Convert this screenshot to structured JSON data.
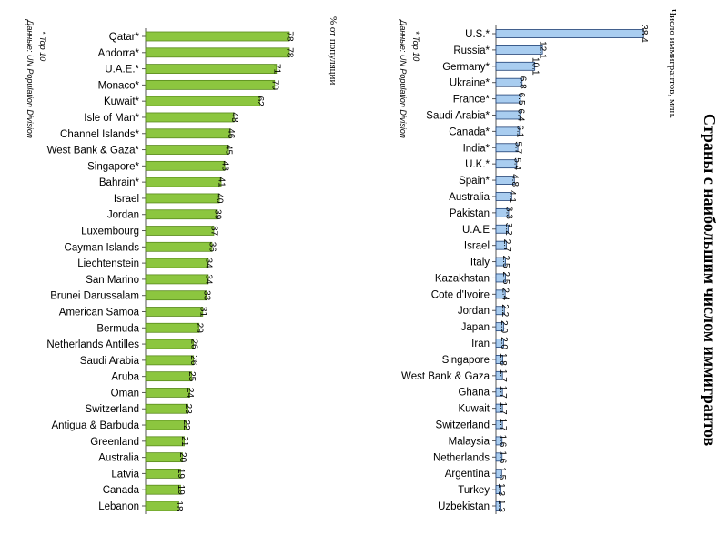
{
  "title": "Страны с наибольшим числом иммигрантов",
  "chart_data": [
    {
      "type": "bar",
      "orientation": "horizontal",
      "unit_label": "% от популяции",
      "notes": [
        "* Top 10",
        "Данные: UN Population Division"
      ],
      "categories": [
        "Qatar*",
        "Andorra*",
        "U.A.E.*",
        "Monaco*",
        "Kuwait*",
        "Isle of Man*",
        "Channel Islands*",
        "West Bank & Gaza*",
        "Singapore*",
        "Bahrain*",
        "Israel",
        "Jordan",
        "Luxembourg",
        "Cayman Islands",
        "Liechtenstein",
        "San Marino",
        "Brunei Darussalam",
        "American Samoa",
        "Bermuda",
        "Netherlands Antilles",
        "Saudi Arabia",
        "Aruba",
        "Oman",
        "Switzerland",
        "Antigua & Barbuda",
        "Greenland",
        "Australia",
        "Latvia",
        "Canada",
        "Lebanon"
      ],
      "values": [
        78,
        78,
        71,
        70,
        62,
        48,
        46,
        45,
        43,
        41,
        40,
        39,
        37,
        36,
        34,
        34,
        33,
        31,
        29,
        26,
        26,
        25,
        24,
        23,
        22,
        21,
        20,
        19,
        19,
        18
      ],
      "value_labels": [
        "78",
        "78",
        "71",
        "70",
        "62",
        "48",
        "46",
        "45",
        "43",
        "41",
        "40",
        "39",
        "37",
        "36",
        "34",
        "34",
        "33",
        "31",
        "29",
        "26",
        "26",
        "25",
        "24",
        "23",
        "22",
        "21",
        "20",
        "19",
        "19",
        "18"
      ],
      "xlim": [
        0,
        80
      ],
      "colors": {
        "bar": "#8cc63f",
        "bar_stroke": "#5a8a1e"
      }
    },
    {
      "type": "bar",
      "orientation": "horizontal",
      "unit_label": "Число иммигрантов, млн.",
      "notes": [
        "* Top 10",
        "Данные: UN Population Division"
      ],
      "categories": [
        "U.S.*",
        "Russia*",
        "Germany*",
        "Ukraine*",
        "France*",
        "Saudi Arabia*",
        "Canada*",
        "India*",
        "U.K.*",
        "Spain*",
        "Australia",
        "Pakistan",
        "U.A.E",
        "Israel",
        "Italy",
        "Kazakhstan",
        "Cote d'Ivoire",
        "Jordan",
        "Japan",
        "Iran",
        "Singapore",
        "West Bank & Gaza",
        "Ghana",
        "Kuwait",
        "Switzerland",
        "Malaysia",
        "Netherlands",
        "Argentina",
        "Turkey",
        "Uzbekistan"
      ],
      "values": [
        38.4,
        12.1,
        10.1,
        6.8,
        6.5,
        6.4,
        6.1,
        5.7,
        5.4,
        4.8,
        4.1,
        3.3,
        3.2,
        2.7,
        2.5,
        2.5,
        2.4,
        2.2,
        2.0,
        2.0,
        1.8,
        1.7,
        1.7,
        1.7,
        1.7,
        1.6,
        1.6,
        1.5,
        1.3,
        1.3
      ],
      "value_labels": [
        "38.4",
        "12.1",
        "10.1",
        "6.8",
        "6.5",
        "6.4",
        "6.1",
        "5.7",
        "5.4",
        "4.8",
        "4.1",
        "3.3",
        "3.2",
        "2.7",
        "2.5",
        "2.5",
        "2.4",
        "2.2",
        "2.0",
        "2.0",
        "1.8",
        "1.7",
        "1.7",
        "1.7",
        "1.7",
        "1.6",
        "1.6",
        "1.5",
        "1.3",
        "1.3"
      ],
      "xlim": [
        0,
        40
      ],
      "colors": {
        "bar": "#a9cdf0",
        "bar_stroke": "#1e3f73"
      }
    }
  ]
}
